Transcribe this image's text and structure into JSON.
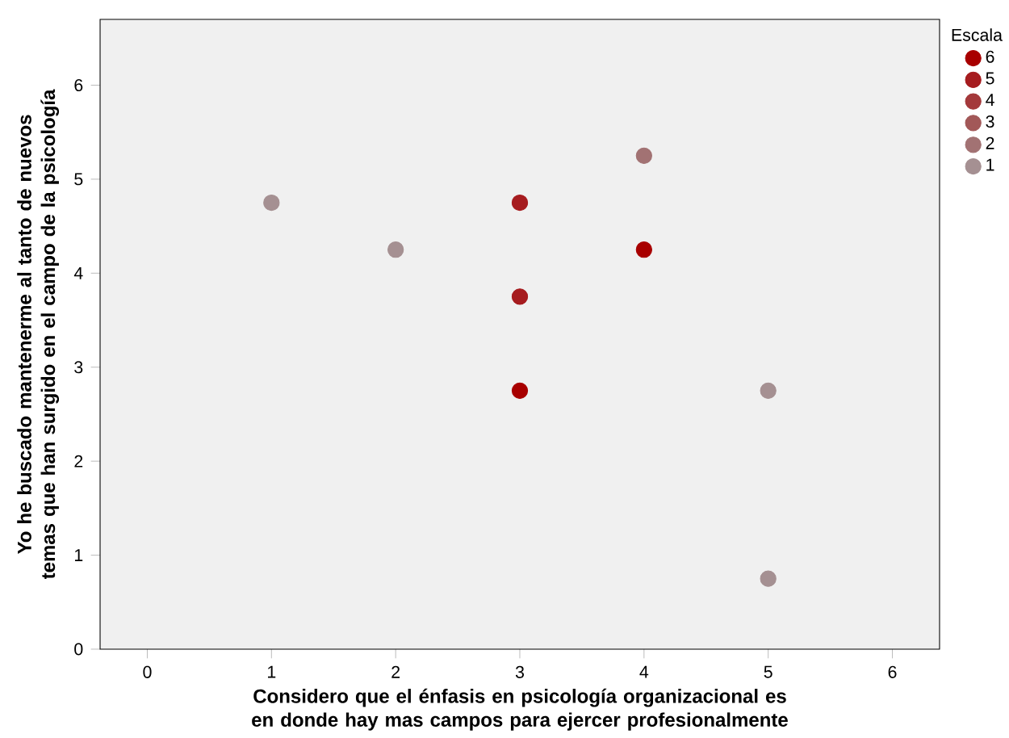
{
  "chart_data": {
    "type": "scatter",
    "xlabel": "Considero que el énfasis en psicología organizacional es en donde hay mas campos para ejercer profesionalmente",
    "ylabel": "Yo he buscado mantenerme al tanto de nuevos temas que han surgido en el campo de la psicología",
    "legend_title": "Escala",
    "xlim": [
      -0.38,
      6.38
    ],
    "ylim": [
      0,
      6.7
    ],
    "xticks": [
      0,
      1,
      2,
      3,
      4,
      5,
      6
    ],
    "yticks": [
      0,
      1,
      2,
      3,
      4,
      5,
      6
    ],
    "marker": "circle",
    "legend": "top right",
    "grid": false,
    "series": [
      {
        "name": "6",
        "color": "#a80000",
        "x": [
          4,
          3
        ],
        "values": [
          4.25,
          2.75
        ]
      },
      {
        "name": "5",
        "color": "#a61c1f",
        "x": [
          3,
          3
        ],
        "values": [
          4.75,
          3.75
        ]
      },
      {
        "name": "4",
        "color": "#a4393b"
      },
      {
        "name": "3",
        "color": "#a25858"
      },
      {
        "name": "2",
        "color": "#a27273",
        "x": [
          4
        ],
        "values": [
          5.25
        ]
      },
      {
        "name": "1",
        "color": "#a59092",
        "x": [
          1,
          2,
          5,
          5
        ],
        "values": [
          4.75,
          4.25,
          2.75,
          0.75
        ]
      }
    ]
  }
}
